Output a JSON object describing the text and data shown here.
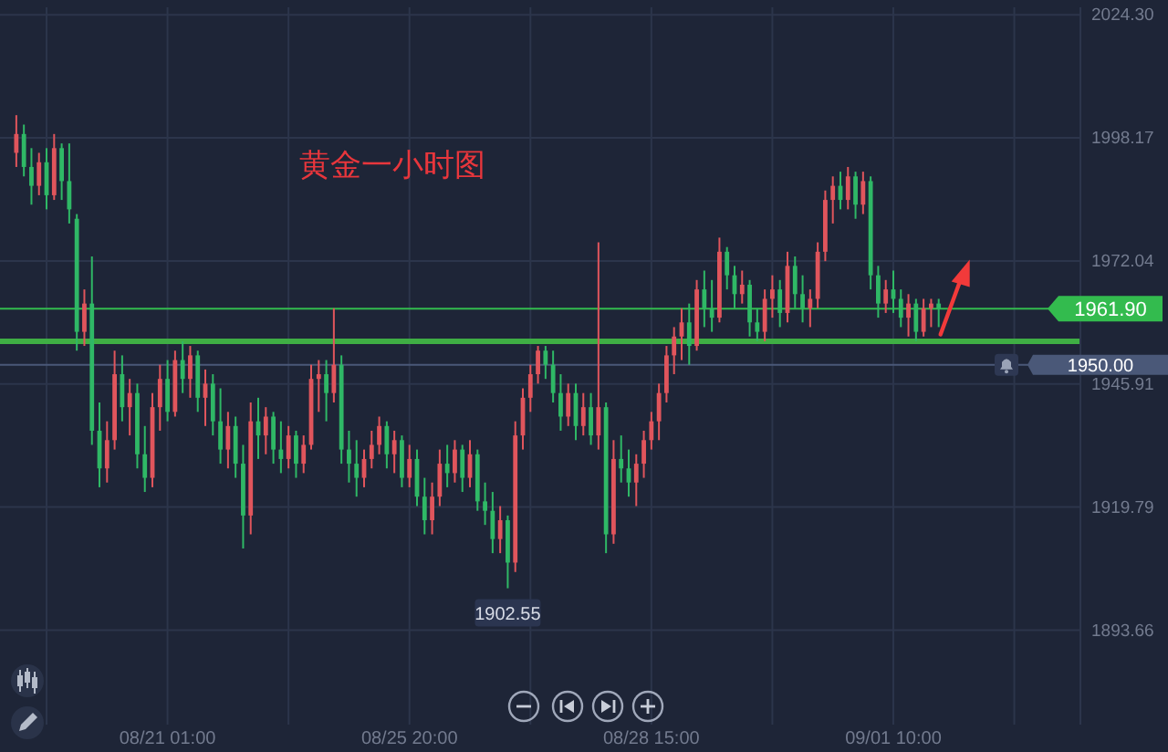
{
  "chart_data": {
    "type": "candlestick",
    "title": "黄金一小时图",
    "categories": [
      null,
      null,
      null,
      null,
      null,
      null,
      null,
      null,
      null,
      null,
      null,
      null,
      null,
      null,
      null,
      null,
      null,
      null,
      null,
      null,
      "08/21 01:00",
      null,
      null,
      null,
      null,
      null,
      null,
      null,
      null,
      null,
      null,
      null,
      null,
      null,
      null,
      null,
      null,
      null,
      null,
      null,
      null,
      null,
      null,
      null,
      null,
      null,
      null,
      null,
      null,
      null,
      null,
      null,
      "08/25 20:00",
      null,
      null,
      null,
      null,
      null,
      null,
      null,
      null,
      null,
      null,
      null,
      null,
      null,
      null,
      null,
      null,
      null,
      null,
      null,
      null,
      null,
      null,
      null,
      null,
      null,
      null,
      null,
      null,
      null,
      null,
      null,
      "08/28 15:00",
      null,
      null,
      null,
      null,
      null,
      null,
      null,
      null,
      null,
      null,
      null,
      null,
      null,
      null,
      null,
      null,
      null,
      null,
      null,
      null,
      null,
      null,
      null,
      null,
      null,
      null,
      null,
      null,
      null,
      null,
      null,
      "09/01 10:00",
      null,
      null,
      null,
      null,
      null,
      null,
      null,
      null,
      null,
      null,
      null,
      null,
      null,
      null,
      null,
      null,
      null,
      null,
      null,
      null,
      null,
      null,
      null,
      null
    ],
    "ohlc": [
      [
        1995,
        2003,
        1992,
        1999
      ],
      [
        1999,
        2001,
        1990,
        1992
      ],
      [
        1992,
        1996,
        1984,
        1988
      ],
      [
        1988,
        1995,
        1986,
        1993
      ],
      [
        1993,
        1996,
        1983,
        1986
      ],
      [
        1986,
        1999,
        1985,
        1996
      ],
      [
        1996,
        1997,
        1985,
        1989
      ],
      [
        1989,
        1997,
        1980,
        1983
      ],
      [
        1981,
        1982,
        1953,
        1957
      ],
      [
        1957,
        1966,
        1954,
        1963
      ],
      [
        1963,
        1973,
        1933,
        1936
      ],
      [
        1936,
        1942,
        1924,
        1928
      ],
      [
        1928,
        1938,
        1925,
        1934
      ],
      [
        1934,
        1953,
        1932,
        1948
      ],
      [
        1948,
        1952,
        1938,
        1941
      ],
      [
        1941,
        1947,
        1935,
        1944
      ],
      [
        1944,
        1946,
        1928,
        1931
      ],
      [
        1931,
        1937,
        1923,
        1926
      ],
      [
        1926,
        1944,
        1924,
        1941
      ],
      [
        1941,
        1950,
        1936,
        1947
      ],
      [
        1947,
        1951,
        1938,
        1940
      ],
      [
        1940,
        1953,
        1939,
        1951
      ],
      [
        1951,
        1955,
        1944,
        1947
      ],
      [
        1947,
        1954,
        1943,
        1952
      ],
      [
        1952,
        1953,
        1940,
        1943
      ],
      [
        1943,
        1949,
        1937,
        1946
      ],
      [
        1946,
        1948,
        1935,
        1938
      ],
      [
        1938,
        1945,
        1929,
        1932
      ],
      [
        1932,
        1940,
        1928,
        1937
      ],
      [
        1937,
        1939,
        1926,
        1929
      ],
      [
        1929,
        1933,
        1911,
        1918
      ],
      [
        1918,
        1942,
        1914,
        1938
      ],
      [
        1938,
        1943,
        1930,
        1935
      ],
      [
        1935,
        1941,
        1931,
        1939
      ],
      [
        1939,
        1940,
        1929,
        1932
      ],
      [
        1932,
        1938,
        1927,
        1930
      ],
      [
        1930,
        1937,
        1928,
        1935
      ],
      [
        1935,
        1936,
        1926,
        1929
      ],
      [
        1929,
        1935,
        1927,
        1933
      ],
      [
        1933,
        1950,
        1932,
        1947
      ],
      [
        1947,
        1951,
        1940,
        1948
      ],
      [
        1948,
        1951,
        1938,
        1944
      ],
      [
        1944,
        1962,
        1942,
        1950
      ],
      [
        1950,
        1952,
        1929,
        1932
      ],
      [
        1932,
        1936,
        1925,
        1929
      ],
      [
        1929,
        1934,
        1922,
        1926
      ],
      [
        1926,
        1932,
        1924,
        1930
      ],
      [
        1930,
        1936,
        1928,
        1933
      ],
      [
        1933,
        1939,
        1931,
        1937
      ],
      [
        1937,
        1938,
        1928,
        1931
      ],
      [
        1931,
        1936,
        1927,
        1934
      ],
      [
        1934,
        1935,
        1924,
        1926
      ],
      [
        1926,
        1933,
        1924,
        1930
      ],
      [
        1930,
        1932,
        1920,
        1922
      ],
      [
        1922,
        1926,
        1914,
        1917
      ],
      [
        1917,
        1925,
        1914,
        1922
      ],
      [
        1922,
        1932,
        1920,
        1929
      ],
      [
        1929,
        1933,
        1924,
        1927
      ],
      [
        1927,
        1934,
        1925,
        1932
      ],
      [
        1932,
        1933,
        1923,
        1926
      ],
      [
        1926,
        1934,
        1924,
        1931
      ],
      [
        1931,
        1932,
        1919,
        1921
      ],
      [
        1921,
        1925,
        1916,
        1919
      ],
      [
        1919,
        1923,
        1910,
        1913
      ],
      [
        1913,
        1920,
        1910,
        1917
      ],
      [
        1917,
        1918,
        1902.55,
        1908
      ],
      [
        1908,
        1938,
        1906,
        1935
      ],
      [
        1935,
        1945,
        1932,
        1943
      ],
      [
        1943,
        1950,
        1940,
        1948
      ],
      [
        1948,
        1954,
        1946,
        1953
      ],
      [
        1953,
        1954,
        1947,
        1950
      ],
      [
        1950,
        1953,
        1942,
        1944
      ],
      [
        1944,
        1948,
        1936,
        1939
      ],
      [
        1939,
        1946,
        1937,
        1944
      ],
      [
        1944,
        1946,
        1934,
        1937
      ],
      [
        1937,
        1944,
        1935,
        1941
      ],
      [
        1941,
        1944,
        1933,
        1935
      ],
      [
        1935,
        1976,
        1932,
        1941
      ],
      [
        1941,
        1942,
        1910,
        1914
      ],
      [
        1914,
        1934,
        1912,
        1930
      ],
      [
        1930,
        1935,
        1925,
        1928
      ],
      [
        1928,
        1932,
        1922,
        1925
      ],
      [
        1925,
        1931,
        1920,
        1929
      ],
      [
        1929,
        1936,
        1926,
        1934
      ],
      [
        1934,
        1940,
        1932,
        1938
      ],
      [
        1938,
        1946,
        1934,
        1944
      ],
      [
        1944,
        1954,
        1942,
        1952
      ],
      [
        1952,
        1958,
        1948,
        1956
      ],
      [
        1956,
        1962,
        1951,
        1959
      ],
      [
        1959,
        1963,
        1950,
        1954
      ],
      [
        1954,
        1968,
        1953,
        1966
      ],
      [
        1966,
        1970,
        1958,
        1962
      ],
      [
        1962,
        1968,
        1957,
        1960
      ],
      [
        1960,
        1977,
        1959,
        1974
      ],
      [
        1974,
        1975,
        1966,
        1969
      ],
      [
        1969,
        1971,
        1962,
        1965
      ],
      [
        1965,
        1970,
        1963,
        1967
      ],
      [
        1967,
        1968,
        1956,
        1959
      ],
      [
        1959,
        1962,
        1955,
        1957
      ],
      [
        1957,
        1966,
        1955,
        1964
      ],
      [
        1964,
        1969,
        1960,
        1966
      ],
      [
        1966,
        1968,
        1958,
        1961
      ],
      [
        1961,
        1974,
        1959,
        1971
      ],
      [
        1971,
        1973,
        1962,
        1965
      ],
      [
        1965,
        1969,
        1959,
        1962
      ],
      [
        1962,
        1966,
        1958,
        1964
      ],
      [
        1964,
        1976,
        1962,
        1974
      ],
      [
        1974,
        1987,
        1972,
        1985
      ],
      [
        1985,
        1990,
        1980,
        1988
      ],
      [
        1988,
        1991,
        1983,
        1985
      ],
      [
        1985,
        1992,
        1983,
        1990
      ],
      [
        1990,
        1991,
        1981,
        1984
      ],
      [
        1984,
        1991,
        1982,
        1989
      ],
      [
        1989,
        1990,
        1966,
        1969
      ],
      [
        1969,
        1971,
        1960,
        1963
      ],
      [
        1963,
        1968,
        1961,
        1966
      ],
      [
        1966,
        1970,
        1961,
        1964
      ],
      [
        1964,
        1966,
        1958,
        1960
      ],
      [
        1960,
        1965,
        1956,
        1963
      ],
      [
        1963,
        1964,
        1955,
        1957
      ],
      [
        1957,
        1964,
        1956,
        1962
      ],
      [
        1962,
        1964,
        1958,
        1963
      ],
      [
        1963,
        1964,
        1958,
        1961.9
      ],
      null,
      null,
      null,
      null,
      null,
      null,
      null,
      null,
      null,
      null,
      null,
      null,
      null,
      null,
      null,
      null,
      null,
      null
    ],
    "colors": [
      "#e0555c",
      "#2fb866",
      "#2fb866",
      "#e0555c",
      "#2fb866",
      "#e0555c",
      "#2fb866",
      "#2fb866",
      "#2fb866",
      "#e0555c",
      "#2fb866",
      "#2fb866",
      "#e0555c",
      "#e0555c",
      "#2fb866",
      "#e0555c",
      "#2fb866",
      "#2fb866",
      "#e0555c",
      "#e0555c",
      "#2fb866",
      "#e0555c",
      "#2fb866",
      "#e0555c",
      "#2fb866",
      "#e0555c",
      "#2fb866",
      "#2fb866",
      "#e0555c",
      "#2fb866",
      "#2fb866",
      "#e0555c",
      "#2fb866",
      "#e0555c",
      "#2fb866",
      "#2fb866",
      "#e0555c",
      "#2fb866",
      "#e0555c",
      "#e0555c",
      "#e0555c",
      "#2fb866",
      "#e0555c",
      "#2fb866",
      "#2fb866",
      "#2fb866",
      "#e0555c",
      "#e0555c",
      "#e0555c",
      "#2fb866",
      "#e0555c",
      "#2fb866",
      "#e0555c",
      "#2fb866",
      "#2fb866",
      "#e0555c",
      "#e0555c",
      "#2fb866",
      "#e0555c",
      "#2fb866",
      "#e0555c",
      "#2fb866",
      "#2fb866",
      "#2fb866",
      "#e0555c",
      "#2fb866",
      "#e0555c",
      "#e0555c",
      "#e0555c",
      "#e0555c",
      "#2fb866",
      "#2fb866",
      "#2fb866",
      "#e0555c",
      "#2fb866",
      "#e0555c",
      "#2fb866",
      "#e0555c",
      "#2fb866",
      "#e0555c",
      "#2fb866",
      "#2fb866",
      "#e0555c",
      "#e0555c",
      "#e0555c",
      "#e0555c",
      "#e0555c",
      "#e0555c",
      "#e0555c",
      "#2fb866",
      "#e0555c",
      "#2fb866",
      "#2fb866",
      "#e0555c",
      "#2fb866",
      "#2fb866",
      "#e0555c",
      "#2fb866",
      "#2fb866",
      "#e0555c",
      "#e0555c",
      "#2fb866",
      "#e0555c",
      "#2fb866",
      "#2fb866",
      "#e0555c",
      "#e0555c",
      "#e0555c",
      "#e0555c",
      "#2fb866",
      "#e0555c",
      "#2fb866",
      "#e0555c",
      "#2fb866",
      "#2fb866",
      "#e0555c",
      "#2fb866",
      "#2fb866",
      "#e0555c",
      "#2fb866",
      "#e0555c",
      "#e0555c",
      "#2fb866",
      null,
      null,
      null,
      null,
      null,
      null,
      null,
      null,
      null,
      null,
      null,
      null,
      null,
      null,
      null,
      null,
      null,
      null
    ],
    "ylim": [
      1873.6,
      2025.9
    ],
    "yticks": [
      {
        "value": 2024.3,
        "label": "2024.30"
      },
      {
        "value": 1998.17,
        "label": "1998.17"
      },
      {
        "value": 1972.04,
        "label": "1972.04"
      },
      {
        "value": 1945.91,
        "label": "1945.91"
      },
      {
        "value": 1919.79,
        "label": "1919.79"
      },
      {
        "value": 1893.66,
        "label": "1893.66"
      }
    ],
    "grid": true,
    "ref_lines": [
      {
        "axis": "y",
        "value": 1955,
        "color": "#3fae44"
      },
      {
        "axis": "y",
        "value": 1961.9,
        "label": "1961.90",
        "color": "#33bb4e"
      },
      {
        "axis": "y",
        "value": 1950,
        "label": "1950.00",
        "color": "#4a5878"
      }
    ],
    "annotations": [
      {
        "text": "1902.55",
        "y": 1902.55
      }
    ]
  }
}
